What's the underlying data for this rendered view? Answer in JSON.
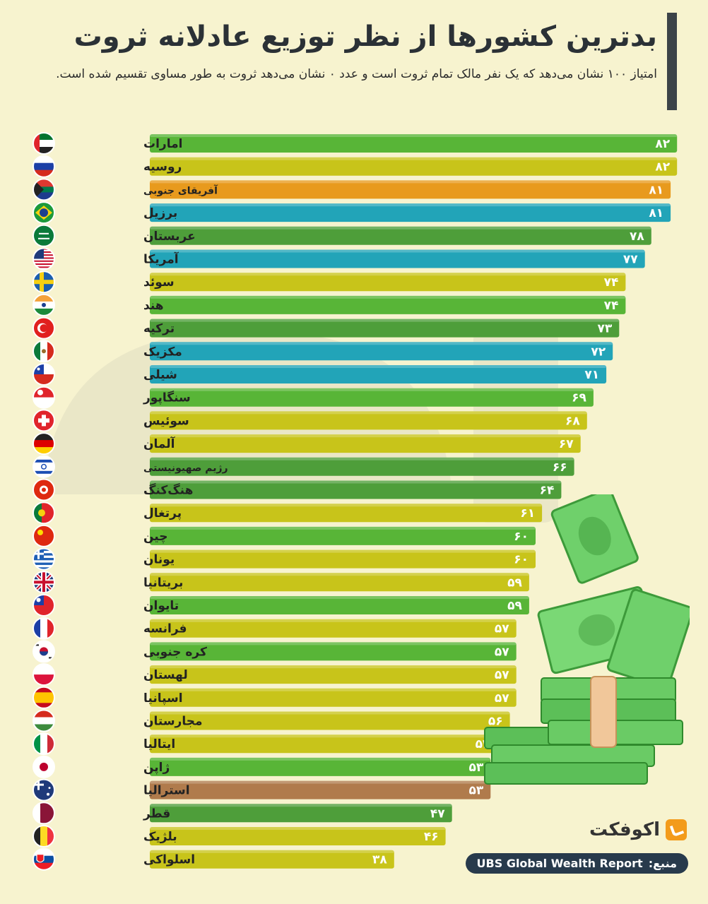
{
  "title": "بدترین کشورها از نظر توزیع عادلانه ثروت",
  "subtitle": "امتیاز ۱۰۰ نشان می‌دهد که یک نفر مالک تمام ثروت است و عدد ۰ نشان می‌دهد ثروت به طور مساوی تقسیم شده است.",
  "brand": "اکوفکت",
  "source_label": "منبع:",
  "source_value": "UBS Global Wealth Report",
  "chart_data": {
    "type": "bar",
    "orientation": "horizontal",
    "xlim": [
      0,
      100
    ],
    "categories": [
      "امارات",
      "روسیه",
      "آفریقای جنوبی",
      "برزیل",
      "عربستان",
      "آمریکا",
      "سوئد",
      "هند",
      "ترکیه",
      "مکزیک",
      "شیلی",
      "سنگاپور",
      "سوئیس",
      "آلمان",
      "رژیم صهیونیستی",
      "هنگ‌کنگ",
      "پرتغال",
      "چین",
      "یونان",
      "بریتانیا",
      "تایوان",
      "فرانسه",
      "کره جنوبی",
      "لهستان",
      "اسپانیا",
      "مجارستان",
      "ایتالیا",
      "ژاپن",
      "استرالیا",
      "قطر",
      "بلژیک",
      "اسلواکی"
    ],
    "values": [
      82,
      82,
      81,
      81,
      78,
      77,
      74,
      74,
      73,
      72,
      71,
      69,
      68,
      67,
      66,
      64,
      61,
      60,
      60,
      59,
      59,
      57,
      57,
      57,
      57,
      56,
      54,
      53,
      53,
      47,
      46,
      38
    ],
    "value_labels": [
      "۸۲",
      "۸۲",
      "۸۱",
      "۸۱",
      "۷۸",
      "۷۷",
      "۷۴",
      "۷۴",
      "۷۳",
      "۷۲",
      "۷۱",
      "۶۹",
      "۶۸",
      "۶۷",
      "۶۶",
      "۶۴",
      "۶۱",
      "۶۰",
      "۶۰",
      "۵۹",
      "۵۹",
      "۵۷",
      "۵۷",
      "۵۷",
      "۵۷",
      "۵۶",
      "۵۴",
      "۵۳",
      "۵۳",
      "۴۷",
      "۴۶",
      "۳۸"
    ],
    "bar_colors": [
      "#58b537",
      "#c8c41a",
      "#e89a1d",
      "#22a4b8",
      "#4e9e3a",
      "#22a4b8",
      "#c8c41a",
      "#58b537",
      "#4e9e3a",
      "#22a4b8",
      "#22a4b8",
      "#58b537",
      "#c8c41a",
      "#c8c41a",
      "#4e9e3a",
      "#4e9e3a",
      "#c8c41a",
      "#58b537",
      "#c8c41a",
      "#c8c41a",
      "#58b537",
      "#c8c41a",
      "#58b537",
      "#c8c41a",
      "#c8c41a",
      "#c8c41a",
      "#c8c41a",
      "#58b537",
      "#b07b4c",
      "#4e9e3a",
      "#c8c41a",
      "#c8c41a"
    ],
    "flags": [
      "uae",
      "russia",
      "south-africa",
      "brazil",
      "saudi-arabia",
      "usa",
      "sweden",
      "india",
      "turkey",
      "mexico",
      "chile",
      "singapore",
      "switzerland",
      "germany",
      "israel",
      "hong-kong",
      "portugal",
      "china",
      "greece",
      "uk",
      "taiwan",
      "france",
      "south-korea",
      "poland",
      "spain",
      "hungary",
      "italy",
      "japan",
      "australia",
      "qatar",
      "belgium",
      "slovakia"
    ]
  }
}
